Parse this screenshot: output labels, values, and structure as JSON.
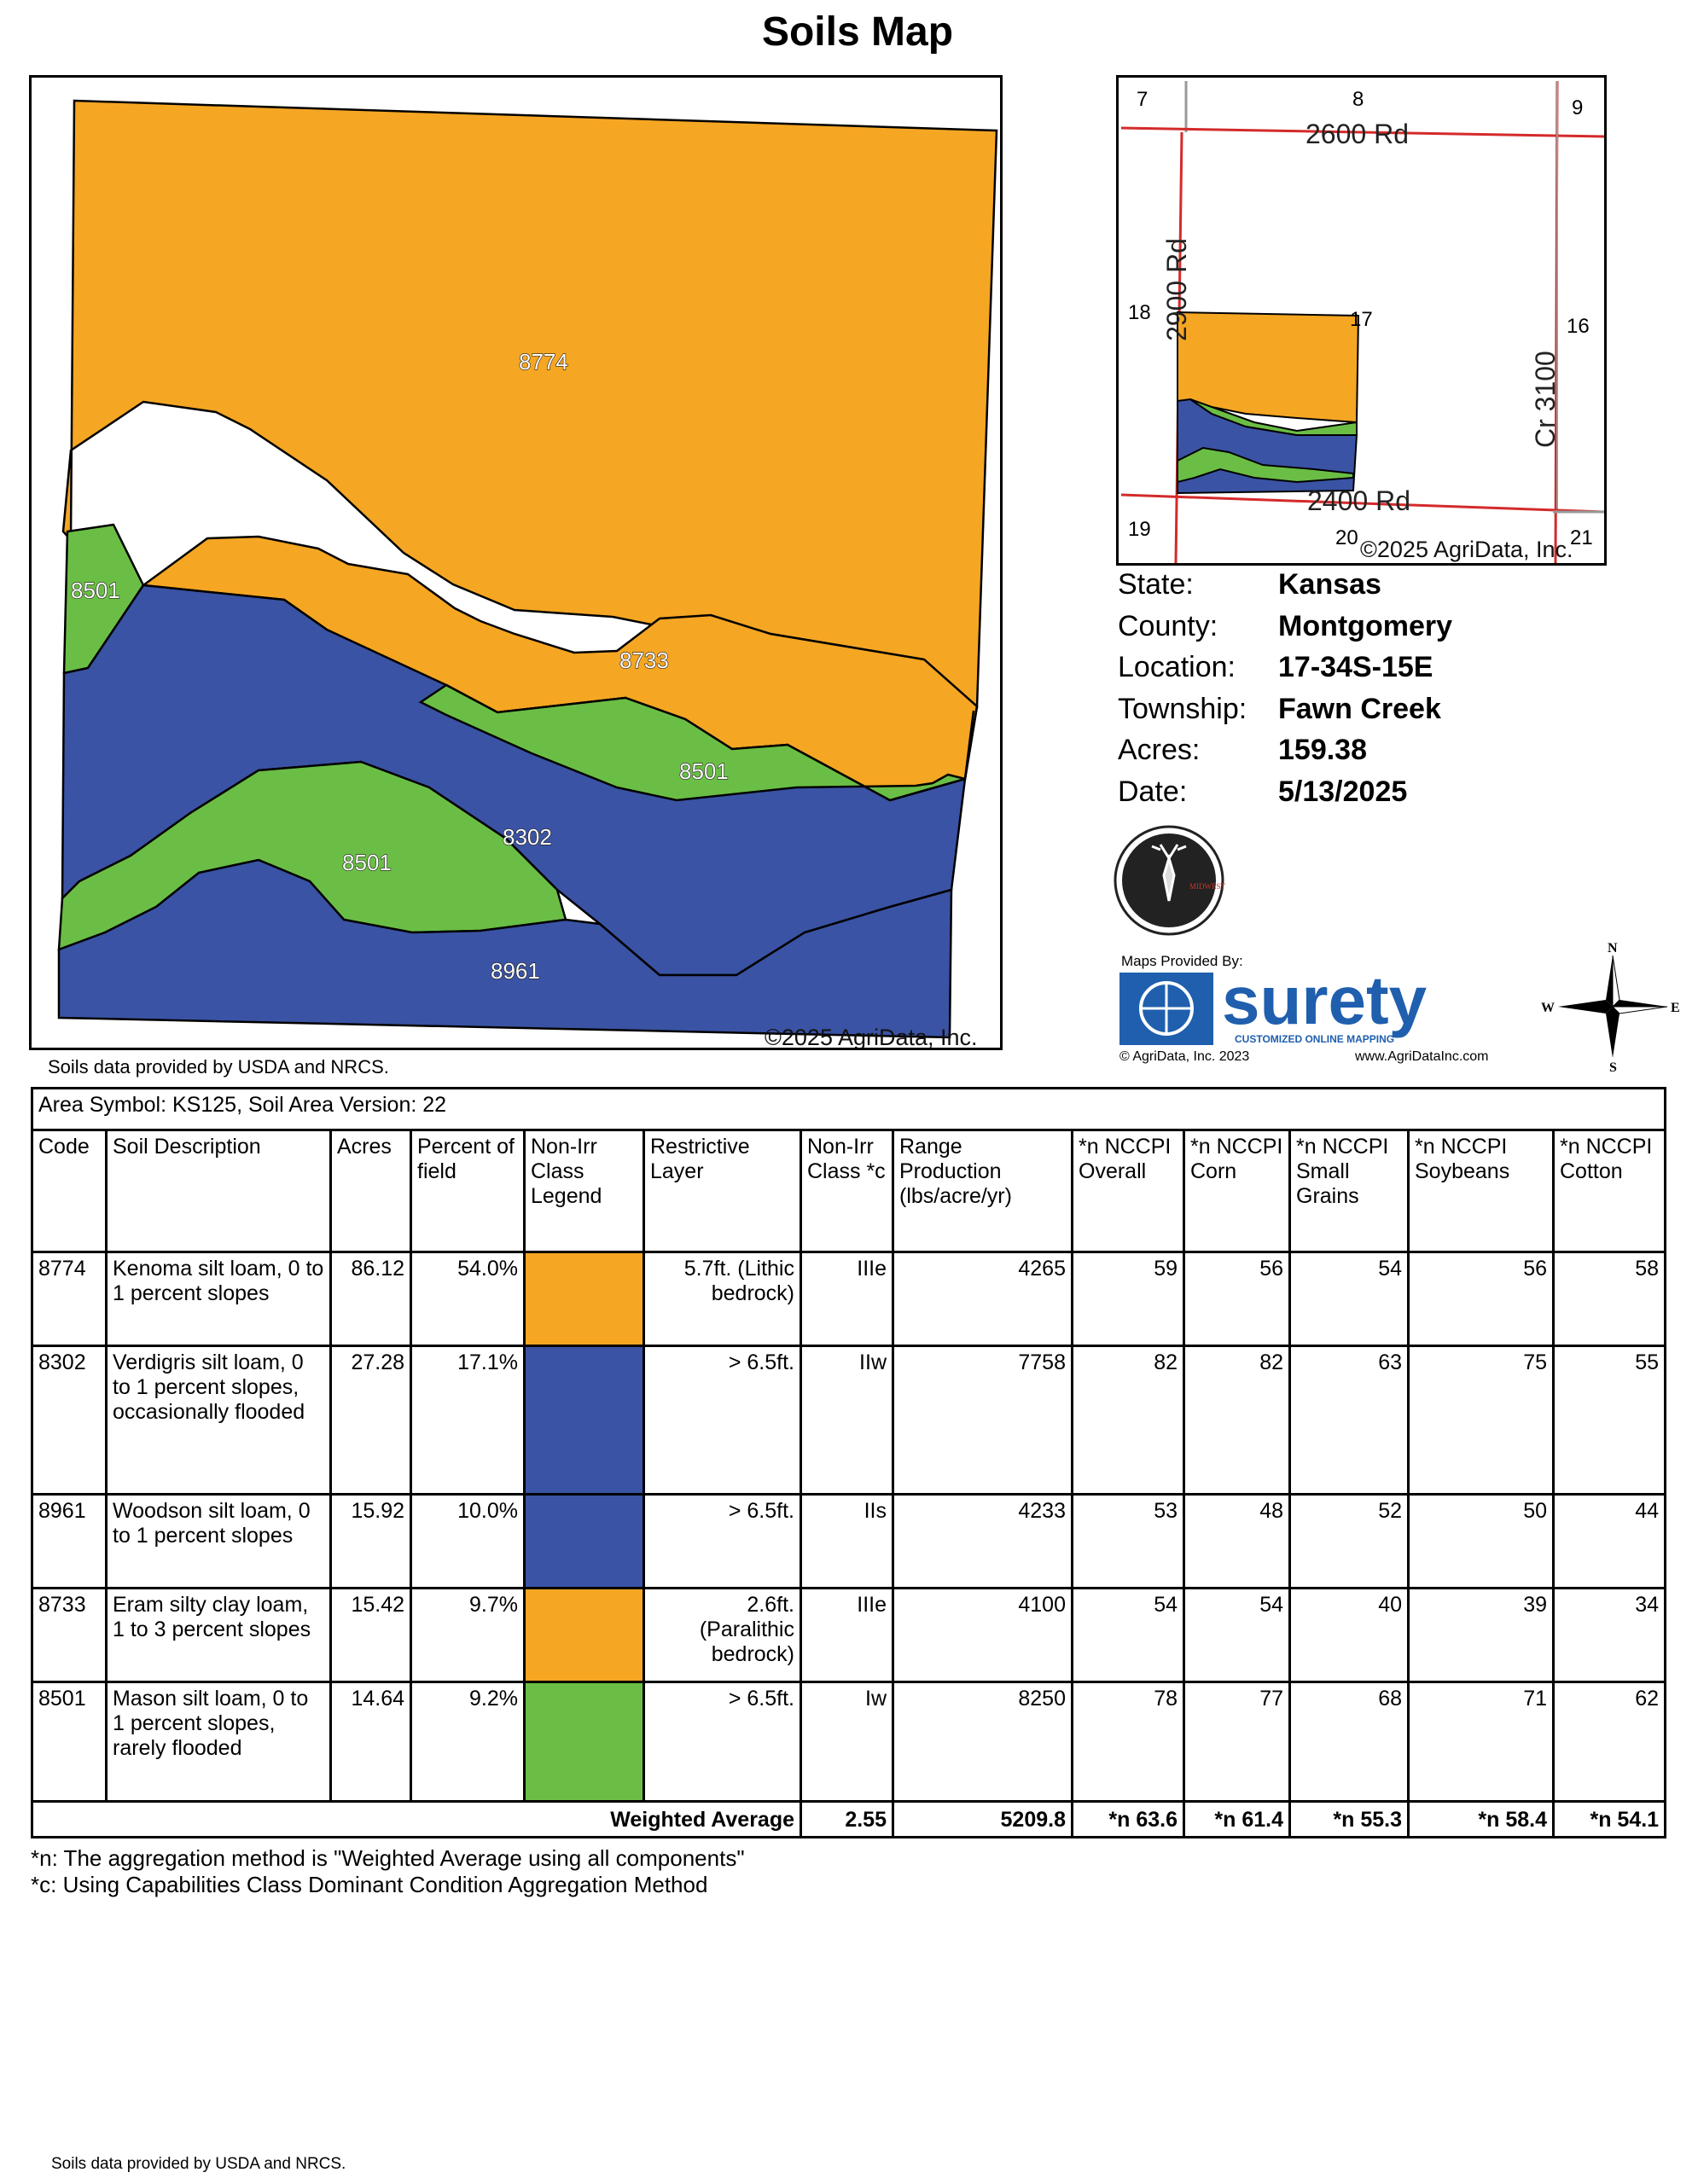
{
  "title": "Soils Map",
  "main_map": {
    "labels": [
      "8774",
      "8501",
      "8733",
      "8501",
      "8302",
      "8501",
      "8961"
    ],
    "copyright": "©2025 AgriData, Inc."
  },
  "usda_note": "Soils data provided by USDA and NRCS.",
  "locator_map": {
    "roads": [
      "2600 Rd",
      "2900 Rd",
      "2400 Rd",
      "Cr 3100"
    ],
    "sections": [
      "7",
      "8",
      "9",
      "18",
      "17",
      "16",
      "19",
      "20",
      "21"
    ],
    "copyright": "©2025 AgriData, Inc."
  },
  "info": [
    {
      "label": "State:",
      "value": "Kansas"
    },
    {
      "label": "County:",
      "value": "Montgomery"
    },
    {
      "label": "Location:",
      "value": "17-34S-15E"
    },
    {
      "label": "Township:",
      "value": "Fawn Creek"
    },
    {
      "label": "Acres:",
      "value": "159.38"
    },
    {
      "label": "Date:",
      "value": "5/13/2025"
    }
  ],
  "logos": {
    "midwest": "MIDWEST",
    "maps_provided_by": "Maps Provided By:",
    "surety": "surety",
    "surety_sub": "CUSTOMIZED ONLINE MAPPING",
    "agri_copyright": "© AgriData, Inc. 2023",
    "agri_url": "www.AgriDataInc.com"
  },
  "compass": {
    "n": "N",
    "s": "S",
    "e": "E",
    "w": "W"
  },
  "colors": {
    "orange": "#F5A623",
    "blue": "#3A53A4",
    "green": "#6BBE45"
  },
  "table": {
    "area_symbol": "Area Symbol: KS125, Soil Area Version: 22",
    "headers": [
      "Code",
      "Soil Description",
      "Acres",
      "Percent of field",
      "Non-Irr Class Legend",
      "Restrictive Layer",
      "Non-Irr Class *c",
      "Range Production (lbs/acre/yr)",
      "*n NCCPI Overall",
      "*n NCCPI Corn",
      "*n NCCPI Small Grains",
      "*n NCCPI Soybeans",
      "*n NCCPI Cotton"
    ],
    "rows": [
      {
        "code": "8774",
        "description": "Kenoma silt loam, 0 to 1 percent slopes",
        "acres": "86.12",
        "percent": "54.0%",
        "legend_color": "orange",
        "restrictive": "5.7ft. (Lithic bedrock)",
        "class": "IIIe",
        "range": "4265",
        "overall": "59",
        "corn": "56",
        "small_grains": "54",
        "soybeans": "56",
        "cotton": "58"
      },
      {
        "code": "8302",
        "description": "Verdigris silt loam, 0 to 1 percent slopes, occasionally flooded",
        "acres": "27.28",
        "percent": "17.1%",
        "legend_color": "blue",
        "restrictive": "> 6.5ft.",
        "class": "IIw",
        "range": "7758",
        "overall": "82",
        "corn": "82",
        "small_grains": "63",
        "soybeans": "75",
        "cotton": "55"
      },
      {
        "code": "8961",
        "description": "Woodson silt loam, 0 to 1 percent slopes",
        "acres": "15.92",
        "percent": "10.0%",
        "legend_color": "blue",
        "restrictive": "> 6.5ft.",
        "class": "IIs",
        "range": "4233",
        "overall": "53",
        "corn": "48",
        "small_grains": "52",
        "soybeans": "50",
        "cotton": "44"
      },
      {
        "code": "8733",
        "description": "Eram silty clay loam, 1 to 3 percent slopes",
        "acres": "15.42",
        "percent": "9.7%",
        "legend_color": "orange",
        "restrictive": "2.6ft. (Paralithic bedrock)",
        "class": "IIIe",
        "range": "4100",
        "overall": "54",
        "corn": "54",
        "small_grains": "40",
        "soybeans": "39",
        "cotton": "34"
      },
      {
        "code": "8501",
        "description": "Mason silt loam, 0 to 1 percent slopes, rarely flooded",
        "acres": "14.64",
        "percent": "9.2%",
        "legend_color": "green",
        "restrictive": "> 6.5ft.",
        "class": "Iw",
        "range": "8250",
        "overall": "78",
        "corn": "77",
        "small_grains": "68",
        "soybeans": "71",
        "cotton": "62"
      }
    ],
    "weighted": {
      "label": "Weighted Average",
      "class": "2.55",
      "range": "5209.8",
      "overall": "*n 63.6",
      "corn": "*n 61.4",
      "small_grains": "*n 55.3",
      "soybeans": "*n 58.4",
      "cotton": "*n 54.1"
    }
  },
  "footnotes": [
    "*n: The aggregation method is \"Weighted Average using all components\"",
    "*c: Using Capabilities Class Dominant Condition Aggregation Method"
  ]
}
